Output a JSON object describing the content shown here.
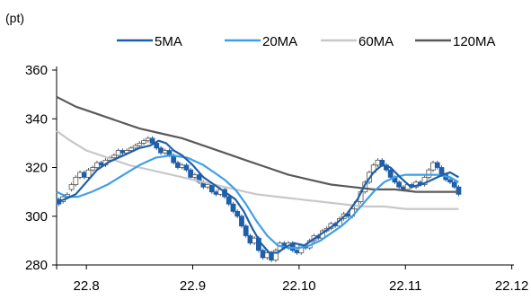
{
  "chart_data": {
    "type": "candlestick-line",
    "unit_label": "(pt)",
    "ylim": [
      280,
      360
    ],
    "y_ticks": [
      280,
      300,
      320,
      340,
      360
    ],
    "x_tick_labels": [
      "22.8",
      "22.9",
      "22.10",
      "22.11",
      "22.12"
    ],
    "x_tick_positions": [
      1,
      2,
      3,
      4,
      5
    ],
    "xlim": [
      0.72,
      5.02
    ],
    "grid": false,
    "legend_placement": "top",
    "series": [
      {
        "name": "5MA",
        "color": "#1f5fa8",
        "points": [
          [
            0.72,
            306
          ],
          [
            0.8,
            307
          ],
          [
            0.9,
            309
          ],
          [
            1.0,
            314
          ],
          [
            1.1,
            319
          ],
          [
            1.2,
            322
          ],
          [
            1.3,
            324
          ],
          [
            1.4,
            326
          ],
          [
            1.5,
            328
          ],
          [
            1.6,
            329
          ],
          [
            1.68,
            331
          ],
          [
            1.75,
            330
          ],
          [
            1.82,
            327
          ],
          [
            1.9,
            325
          ],
          [
            2.0,
            321
          ],
          [
            2.1,
            316
          ],
          [
            2.2,
            313
          ],
          [
            2.3,
            310
          ],
          [
            2.4,
            307
          ],
          [
            2.48,
            302
          ],
          [
            2.56,
            295
          ],
          [
            2.64,
            289
          ],
          [
            2.72,
            285
          ],
          [
            2.8,
            285
          ],
          [
            2.86,
            287
          ],
          [
            2.95,
            289
          ],
          [
            3.05,
            288
          ],
          [
            3.15,
            291
          ],
          [
            3.25,
            294
          ],
          [
            3.35,
            297
          ],
          [
            3.45,
            301
          ],
          [
            3.55,
            307
          ],
          [
            3.62,
            313
          ],
          [
            3.7,
            318
          ],
          [
            3.78,
            321
          ],
          [
            3.86,
            320
          ],
          [
            3.95,
            316
          ],
          [
            4.05,
            312
          ],
          [
            4.15,
            313
          ],
          [
            4.25,
            315
          ],
          [
            4.35,
            317
          ],
          [
            4.42,
            318
          ],
          [
            4.5,
            316
          ]
        ]
      },
      {
        "name": "20MA",
        "color": "#3f9fe6",
        "points": [
          [
            0.72,
            310
          ],
          [
            0.82,
            308
          ],
          [
            0.92,
            308
          ],
          [
            1.05,
            310
          ],
          [
            1.2,
            313
          ],
          [
            1.35,
            317
          ],
          [
            1.5,
            321
          ],
          [
            1.65,
            324
          ],
          [
            1.8,
            325
          ],
          [
            1.95,
            324
          ],
          [
            2.1,
            321
          ],
          [
            2.2,
            318
          ],
          [
            2.3,
            315
          ],
          [
            2.4,
            311
          ],
          [
            2.5,
            305
          ],
          [
            2.6,
            298
          ],
          [
            2.7,
            292
          ],
          [
            2.8,
            288
          ],
          [
            2.9,
            287
          ],
          [
            3.0,
            287
          ],
          [
            3.1,
            288
          ],
          [
            3.2,
            290
          ],
          [
            3.3,
            293
          ],
          [
            3.4,
            296
          ],
          [
            3.5,
            300
          ],
          [
            3.6,
            305
          ],
          [
            3.7,
            310
          ],
          [
            3.8,
            314
          ],
          [
            3.9,
            316
          ],
          [
            4.0,
            317
          ],
          [
            4.1,
            317
          ],
          [
            4.2,
            317
          ],
          [
            4.3,
            317
          ],
          [
            4.42,
            316
          ],
          [
            4.5,
            314
          ]
        ]
      },
      {
        "name": "60MA",
        "color": "#c8c8c8",
        "points": [
          [
            0.72,
            335
          ],
          [
            0.85,
            331
          ],
          [
            1.0,
            327
          ],
          [
            1.2,
            324
          ],
          [
            1.4,
            321
          ],
          [
            1.6,
            319
          ],
          [
            1.8,
            317
          ],
          [
            2.0,
            315
          ],
          [
            2.2,
            313
          ],
          [
            2.4,
            311
          ],
          [
            2.6,
            309
          ],
          [
            2.8,
            308
          ],
          [
            3.0,
            307
          ],
          [
            3.2,
            306
          ],
          [
            3.4,
            305
          ],
          [
            3.6,
            304
          ],
          [
            3.8,
            304
          ],
          [
            4.0,
            303
          ],
          [
            4.2,
            303
          ],
          [
            4.5,
            303
          ]
        ]
      },
      {
        "name": "120MA",
        "color": "#5a5a5a",
        "points": [
          [
            0.72,
            349
          ],
          [
            0.9,
            345
          ],
          [
            1.1,
            342
          ],
          [
            1.3,
            339
          ],
          [
            1.5,
            336
          ],
          [
            1.7,
            334
          ],
          [
            1.9,
            332
          ],
          [
            2.1,
            329
          ],
          [
            2.3,
            326
          ],
          [
            2.5,
            323
          ],
          [
            2.7,
            320
          ],
          [
            2.9,
            317
          ],
          [
            3.1,
            315
          ],
          [
            3.3,
            313
          ],
          [
            3.5,
            312
          ],
          [
            3.7,
            311
          ],
          [
            3.9,
            311
          ],
          [
            4.1,
            310
          ],
          [
            4.3,
            310
          ],
          [
            4.5,
            310
          ]
        ]
      }
    ],
    "candles": [
      [
        0.74,
        307,
        305
      ],
      [
        0.78,
        306,
        308
      ],
      [
        0.82,
        308,
        309
      ],
      [
        0.86,
        311,
        313
      ],
      [
        0.9,
        313,
        316
      ],
      [
        0.94,
        316,
        318
      ],
      [
        0.98,
        318,
        316
      ],
      [
        1.02,
        316,
        319
      ],
      [
        1.06,
        319,
        320
      ],
      [
        1.1,
        320,
        322
      ],
      [
        1.14,
        322,
        321
      ],
      [
        1.18,
        321,
        323
      ],
      [
        1.22,
        323,
        324
      ],
      [
        1.26,
        324,
        325
      ],
      [
        1.3,
        325,
        327
      ],
      [
        1.34,
        327,
        326
      ],
      [
        1.38,
        326,
        327
      ],
      [
        1.42,
        327,
        328
      ],
      [
        1.46,
        328,
        329
      ],
      [
        1.5,
        329,
        330
      ],
      [
        1.54,
        330,
        331
      ],
      [
        1.58,
        331,
        332
      ],
      [
        1.62,
        332,
        330
      ],
      [
        1.66,
        330,
        328
      ],
      [
        1.7,
        328,
        326
      ],
      [
        1.74,
        326,
        327
      ],
      [
        1.78,
        327,
        325
      ],
      [
        1.82,
        325,
        322
      ],
      [
        1.86,
        322,
        320
      ],
      [
        1.9,
        320,
        321
      ],
      [
        1.94,
        321,
        319
      ],
      [
        1.98,
        319,
        316
      ],
      [
        2.02,
        316,
        317
      ],
      [
        2.06,
        317,
        314
      ],
      [
        2.1,
        314,
        312
      ],
      [
        2.14,
        312,
        313
      ],
      [
        2.18,
        313,
        310
      ],
      [
        2.22,
        310,
        309
      ],
      [
        2.26,
        309,
        311
      ],
      [
        2.3,
        311,
        308
      ],
      [
        2.34,
        308,
        305
      ],
      [
        2.38,
        305,
        302
      ],
      [
        2.42,
        302,
        300
      ],
      [
        2.46,
        300,
        296
      ],
      [
        2.5,
        296,
        292
      ],
      [
        2.54,
        292,
        289
      ],
      [
        2.58,
        289,
        291
      ],
      [
        2.62,
        291,
        286
      ],
      [
        2.66,
        286,
        283
      ],
      [
        2.7,
        283,
        285
      ],
      [
        2.74,
        285,
        282
      ],
      [
        2.78,
        282,
        286
      ],
      [
        2.82,
        286,
        289
      ],
      [
        2.86,
        289,
        287
      ],
      [
        2.9,
        287,
        289
      ],
      [
        2.94,
        289,
        286
      ],
      [
        2.98,
        286,
        285
      ],
      [
        3.02,
        285,
        288
      ],
      [
        3.06,
        288,
        287
      ],
      [
        3.1,
        287,
        290
      ],
      [
        3.14,
        290,
        292
      ],
      [
        3.18,
        292,
        291
      ],
      [
        3.22,
        291,
        294
      ],
      [
        3.26,
        294,
        295
      ],
      [
        3.3,
        295,
        297
      ],
      [
        3.34,
        297,
        296
      ],
      [
        3.38,
        296,
        299
      ],
      [
        3.42,
        299,
        301
      ],
      [
        3.46,
        301,
        300
      ],
      [
        3.5,
        300,
        303
      ],
      [
        3.54,
        303,
        306
      ],
      [
        3.58,
        306,
        310
      ],
      [
        3.62,
        310,
        314
      ],
      [
        3.66,
        314,
        318
      ],
      [
        3.7,
        318,
        321
      ],
      [
        3.74,
        321,
        323
      ],
      [
        3.78,
        323,
        321
      ],
      [
        3.82,
        321,
        319
      ],
      [
        3.86,
        319,
        316
      ],
      [
        3.9,
        316,
        314
      ],
      [
        3.94,
        314,
        312
      ],
      [
        3.98,
        312,
        311
      ],
      [
        4.02,
        311,
        313
      ],
      [
        4.06,
        313,
        312
      ],
      [
        4.1,
        312,
        314
      ],
      [
        4.14,
        314,
        313
      ],
      [
        4.18,
        313,
        316
      ],
      [
        4.22,
        316,
        319
      ],
      [
        4.26,
        319,
        322
      ],
      [
        4.3,
        322,
        320
      ],
      [
        4.34,
        320,
        317
      ],
      [
        4.38,
        317,
        315
      ],
      [
        4.42,
        315,
        314
      ],
      [
        4.46,
        314,
        312
      ],
      [
        4.5,
        312,
        309
      ]
    ]
  }
}
